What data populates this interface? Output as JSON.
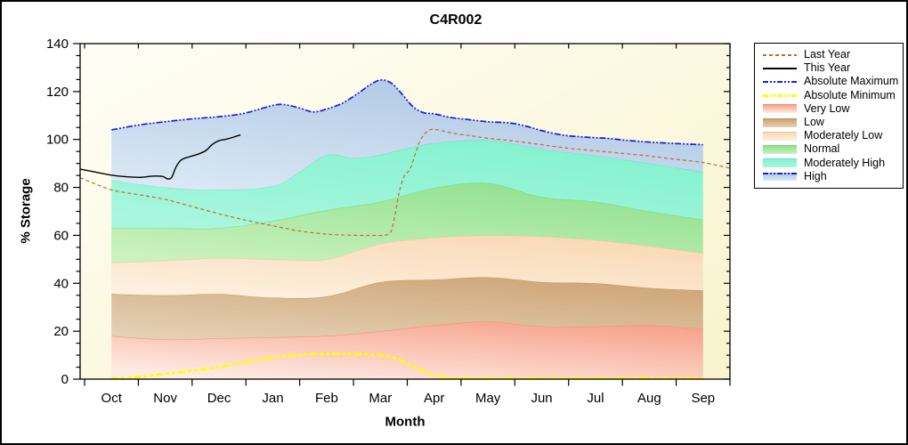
{
  "chart_data": {
    "type": "area",
    "title": "C4R002",
    "xlabel": "Month",
    "ylabel": "% Storage",
    "months": [
      "Oct",
      "Nov",
      "Dec",
      "Jan",
      "Feb",
      "Mar",
      "Apr",
      "May",
      "Jun",
      "Jul",
      "Aug",
      "Sep"
    ],
    "ylim": [
      0,
      140
    ],
    "y_major_step": 20,
    "y_minor_step": 5,
    "y_tick_labels": [
      "0",
      "20",
      "40",
      "60",
      "80",
      "100",
      "120",
      "140"
    ],
    "grid": false,
    "plot_bg": {
      "top_left": "#FFFEF6",
      "bottom_right": "#F8F3CC"
    },
    "bands": [
      {
        "key": "very_low",
        "name": "Very Low",
        "color_top": "#F7A18A",
        "color_bottom": "#FEEDE6",
        "edge": "#EF8D72",
        "top": [
          [
            0,
            18
          ],
          [
            1,
            16.5
          ],
          [
            2,
            17
          ],
          [
            3,
            17.5
          ],
          [
            4,
            18
          ],
          [
            5,
            20
          ],
          [
            6,
            22.5
          ],
          [
            7,
            24
          ],
          [
            8,
            22
          ],
          [
            9,
            22
          ],
          [
            10,
            22.5
          ],
          [
            11,
            21
          ]
        ]
      },
      {
        "key": "low",
        "name": "Low",
        "color_top": "#CEA476",
        "color_bottom": "#E4D0B4",
        "edge": "#BD9058",
        "top": [
          [
            0,
            35.5
          ],
          [
            1,
            35
          ],
          [
            2,
            35.5
          ],
          [
            3,
            34
          ],
          [
            4,
            34.5
          ],
          [
            5,
            40.5
          ],
          [
            6,
            41.5
          ],
          [
            7,
            42.5
          ],
          [
            8,
            40.5
          ],
          [
            9,
            40
          ],
          [
            10,
            38
          ],
          [
            11,
            37
          ]
        ]
      },
      {
        "key": "mod_low",
        "name": "Moderately Low",
        "color_top": "#F9D8B4",
        "color_bottom": "#FDF1E0",
        "edge": "#F0C59C",
        "top": [
          [
            0,
            48.5
          ],
          [
            1,
            49.5
          ],
          [
            2,
            50.5
          ],
          [
            3,
            50
          ],
          [
            4,
            50
          ],
          [
            5,
            56.5
          ],
          [
            6,
            59
          ],
          [
            7,
            60
          ],
          [
            8,
            59.5
          ],
          [
            9,
            58
          ],
          [
            10,
            55.5
          ],
          [
            11,
            52.5
          ]
        ]
      },
      {
        "key": "normal",
        "name": "Normal",
        "color_top": "#8EE08E",
        "color_bottom": "#CBF2BE",
        "edge": "#79D879",
        "top": [
          [
            0,
            63
          ],
          [
            1,
            63
          ],
          [
            2,
            63
          ],
          [
            3,
            66
          ],
          [
            4,
            70.5
          ],
          [
            5,
            74
          ],
          [
            6,
            79.8
          ],
          [
            7,
            81.8
          ],
          [
            8,
            76
          ],
          [
            9,
            74
          ],
          [
            10,
            70
          ],
          [
            11,
            66.5
          ]
        ]
      },
      {
        "key": "mod_high",
        "name": "Moderately High",
        "color_top": "#82F2CE",
        "color_bottom": "#A9F6DE",
        "edge": "#5FE8BE",
        "top": [
          [
            0,
            83
          ],
          [
            1,
            80
          ],
          [
            2,
            79
          ],
          [
            3,
            80.5
          ],
          [
            3.5,
            86.5
          ],
          [
            4,
            93.5
          ],
          [
            4.5,
            92.3
          ],
          [
            5,
            93.6
          ],
          [
            5.5,
            96.3
          ],
          [
            6,
            98.4
          ],
          [
            7,
            99.7
          ],
          [
            8,
            96
          ],
          [
            9,
            93.2
          ],
          [
            10,
            90
          ],
          [
            11,
            86.4
          ]
        ]
      },
      {
        "key": "high",
        "name": "High",
        "color_top": "#AAC4E2",
        "color_bottom": "#DAE8F5",
        "edge": null,
        "top": [
          [
            0,
            104
          ],
          [
            0.5,
            106
          ],
          [
            1,
            107.4
          ],
          [
            1.5,
            108.6
          ],
          [
            2,
            109.5
          ],
          [
            2.4,
            110.6
          ],
          [
            2.7,
            112.3
          ],
          [
            3,
            114.2
          ],
          [
            3.2,
            114.6
          ],
          [
            3.5,
            113.1
          ],
          [
            3.75,
            111.5
          ],
          [
            4,
            112.7
          ],
          [
            4.3,
            115.2
          ],
          [
            4.6,
            119.5
          ],
          [
            4.8,
            122.7
          ],
          [
            5,
            124.8
          ],
          [
            5.2,
            123.6
          ],
          [
            5.4,
            119
          ],
          [
            5.6,
            113.8
          ],
          [
            5.8,
            111.2
          ],
          [
            6,
            110.7
          ],
          [
            6.3,
            109.2
          ],
          [
            6.6,
            108.4
          ],
          [
            7,
            107.4
          ],
          [
            7.4,
            106.9
          ],
          [
            7.7,
            105.6
          ],
          [
            8,
            103.7
          ],
          [
            8.4,
            101.8
          ],
          [
            8.8,
            101
          ],
          [
            9.2,
            100.5
          ],
          [
            9.6,
            99.6
          ],
          [
            10,
            98.9
          ],
          [
            10.5,
            98.3
          ],
          [
            11,
            97.8
          ]
        ]
      }
    ],
    "lines": [
      {
        "key": "last_year",
        "name": "Last Year",
        "color": "#C06A32",
        "width": 1.2,
        "dash": "4,3",
        "points": [
          [
            -0.58,
            84
          ],
          [
            0,
            79
          ],
          [
            0.5,
            77
          ],
          [
            1,
            75
          ],
          [
            1.5,
            72
          ],
          [
            2,
            69
          ],
          [
            2.5,
            66.3
          ],
          [
            3,
            64
          ],
          [
            3.5,
            61.8
          ],
          [
            4,
            60.5
          ],
          [
            4.4,
            60.1
          ],
          [
            4.8,
            60
          ],
          [
            5.15,
            60.5
          ],
          [
            5.25,
            66
          ],
          [
            5.35,
            78
          ],
          [
            5.45,
            85
          ],
          [
            5.55,
            87.5
          ],
          [
            5.65,
            94
          ],
          [
            5.75,
            100
          ],
          [
            5.9,
            103.8
          ],
          [
            6.05,
            104.1
          ],
          [
            6.35,
            102.6
          ],
          [
            6.7,
            101.5
          ],
          [
            7,
            100.5
          ],
          [
            7.5,
            99.3
          ],
          [
            8,
            97.8
          ],
          [
            8.5,
            96.3
          ],
          [
            9,
            95.3
          ],
          [
            9.5,
            94.2
          ],
          [
            10,
            93.1
          ],
          [
            10.5,
            91.7
          ],
          [
            11,
            90.4
          ],
          [
            11.5,
            88
          ]
        ]
      },
      {
        "key": "this_year",
        "name": "This Year",
        "color": "#000000",
        "width": 1.4,
        "dash": "",
        "points": [
          [
            -0.58,
            87.6
          ],
          [
            -0.3,
            86.4
          ],
          [
            0,
            85.1
          ],
          [
            0.3,
            84.4
          ],
          [
            0.55,
            84.2
          ],
          [
            0.75,
            84.7
          ],
          [
            0.95,
            84.6
          ],
          [
            1.04,
            83.6
          ],
          [
            1.12,
            84.2
          ],
          [
            1.2,
            88.5
          ],
          [
            1.3,
            91.5
          ],
          [
            1.45,
            92.8
          ],
          [
            1.6,
            93.8
          ],
          [
            1.75,
            95.3
          ],
          [
            1.88,
            98
          ],
          [
            2,
            99.5
          ],
          [
            2.15,
            100.2
          ],
          [
            2.3,
            101.2
          ],
          [
            2.4,
            101.9
          ]
        ]
      },
      {
        "key": "abs_max",
        "name": "Absolute Maximum",
        "color": "#1C1CD8",
        "width": 1.7,
        "dash": "7,2,2,2,2,2",
        "points": [
          [
            0,
            104
          ],
          [
            0.5,
            106
          ],
          [
            1,
            107.4
          ],
          [
            1.5,
            108.6
          ],
          [
            2,
            109.5
          ],
          [
            2.4,
            110.6
          ],
          [
            2.7,
            112.3
          ],
          [
            3,
            114.2
          ],
          [
            3.2,
            114.6
          ],
          [
            3.5,
            113.1
          ],
          [
            3.75,
            111.5
          ],
          [
            4,
            112.7
          ],
          [
            4.3,
            115.2
          ],
          [
            4.6,
            119.5
          ],
          [
            4.8,
            122.7
          ],
          [
            5,
            124.8
          ],
          [
            5.2,
            123.6
          ],
          [
            5.4,
            119
          ],
          [
            5.6,
            113.8
          ],
          [
            5.8,
            111.2
          ],
          [
            6,
            110.7
          ],
          [
            6.3,
            109.2
          ],
          [
            6.6,
            108.4
          ],
          [
            7,
            107.4
          ],
          [
            7.4,
            106.9
          ],
          [
            7.7,
            105.6
          ],
          [
            8,
            103.7
          ],
          [
            8.4,
            101.8
          ],
          [
            8.8,
            101
          ],
          [
            9.2,
            100.5
          ],
          [
            9.6,
            99.6
          ],
          [
            10,
            98.9
          ],
          [
            10.5,
            98.3
          ],
          [
            11,
            97.8
          ]
        ]
      },
      {
        "key": "abs_min",
        "name": "Absolute Minimum",
        "color": "#FFFF00",
        "width": 2.8,
        "dash": "8,3,4,3,4,3",
        "points": [
          [
            0,
            0.3
          ],
          [
            0.5,
            1
          ],
          [
            1,
            2.2
          ],
          [
            1.5,
            3.5
          ],
          [
            2,
            5
          ],
          [
            2.5,
            7.2
          ],
          [
            3,
            9
          ],
          [
            3.5,
            10.2
          ],
          [
            4,
            10.6
          ],
          [
            4.5,
            10.5
          ],
          [
            5,
            10
          ],
          [
            5.3,
            8.5
          ],
          [
            5.6,
            5.5
          ],
          [
            5.9,
            2.5
          ],
          [
            6.2,
            0.8
          ],
          [
            6.5,
            0.4
          ],
          [
            7,
            0.4
          ],
          [
            8,
            0.4
          ],
          [
            9,
            0.4
          ],
          [
            10,
            0.4
          ],
          [
            11,
            0.4
          ]
        ]
      }
    ],
    "legend": {
      "position": "top-right",
      "items": [
        {
          "key": "last_year",
          "label": "Last Year"
        },
        {
          "key": "this_year",
          "label": "This Year"
        },
        {
          "key": "abs_max",
          "label": "Absolute Maximum"
        },
        {
          "key": "abs_min",
          "label": "Absolute Minimum"
        },
        {
          "key": "very_low",
          "label": "Very Low"
        },
        {
          "key": "low",
          "label": "Low"
        },
        {
          "key": "mod_low",
          "label": "Moderately Low"
        },
        {
          "key": "normal",
          "label": "Normal"
        },
        {
          "key": "mod_high",
          "label": "Moderately High"
        },
        {
          "key": "high",
          "label": "High"
        }
      ]
    }
  }
}
